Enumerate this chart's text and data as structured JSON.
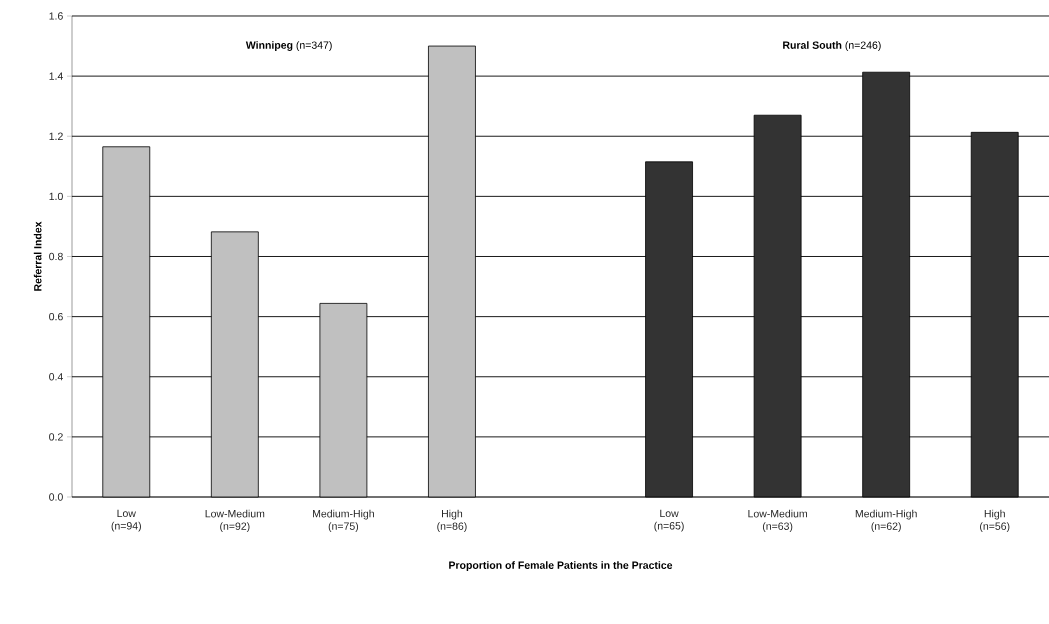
{
  "chart_data": {
    "type": "bar",
    "xlabel": "Proportion of Female Patients in the Practice",
    "ylabel": "Referral Index",
    "categories": [
      "Low\n(n=94)",
      "Low-Medium\n(n=92)",
      "Medium-High\n(n=75)",
      "High\n(n=86)",
      null,
      "Low\n(n=65)",
      "Low-Medium\n(n=63)",
      "Medium-High\n(n=62)",
      "High\n(n=56)"
    ],
    "values": [
      1.165,
      0.882,
      0.644,
      1.5,
      null,
      1.115,
      1.27,
      1.413,
      1.213
    ],
    "colors": [
      "#c0c0c0",
      "#c0c0c0",
      "#c0c0c0",
      "#c0c0c0",
      null,
      "#333333",
      "#333333",
      "#333333",
      "#333333"
    ],
    "annotations": [
      "**Winnipeg** (n=347)",
      "**Rural South** (n=246)"
    ],
    "ylim": [
      0,
      1.6
    ],
    "yticks": [
      {
        "value": 0,
        "label": "0.0"
      },
      {
        "value": 0.2,
        "label": "0.2"
      },
      {
        "value": 0.4,
        "label": "0.4"
      },
      {
        "value": 0.6,
        "label": "0.6"
      },
      {
        "value": 0.8,
        "label": "0.8"
      },
      {
        "value": 1.0,
        "label": "1.0"
      },
      {
        "value": 1.2,
        "label": "1.2"
      },
      {
        "value": 1.4,
        "label": "1.4"
      },
      {
        "value": 1.6,
        "label": "1.6"
      }
    ],
    "grid": "y"
  }
}
